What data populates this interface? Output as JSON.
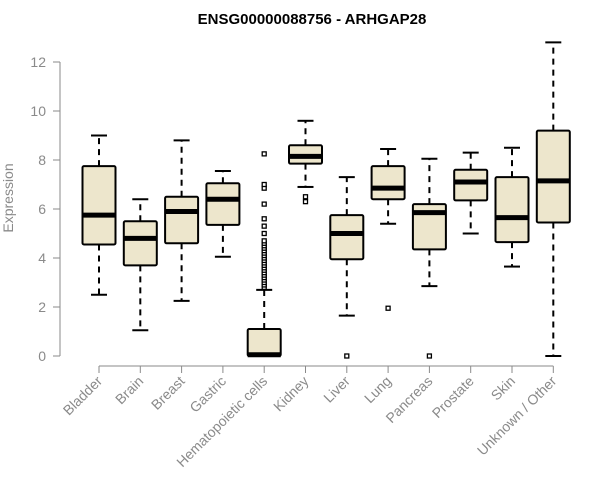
{
  "chart_data": {
    "type": "box",
    "title": "ENSG00000088756 - ARHGAP28",
    "xlabel": "",
    "ylabel": "Expression",
    "ylim": [
      0,
      12.5
    ],
    "yticks": [
      0,
      2,
      4,
      6,
      8,
      10,
      12
    ],
    "categories": [
      "Bladder",
      "Brain",
      "Breast",
      "Gastric",
      "Hematopoietic cells",
      "Kidney",
      "Liver",
      "Lung",
      "Pancreas",
      "Prostate",
      "Skin",
      "Unknown / Other"
    ],
    "boxes": [
      {
        "category": "Bladder",
        "whisker_low": 2.5,
        "q1": 4.55,
        "median": 5.75,
        "q3": 7.75,
        "whisker_high": 9.0,
        "outliers": []
      },
      {
        "category": "Brain",
        "whisker_low": 1.05,
        "q1": 3.7,
        "median": 4.8,
        "q3": 5.5,
        "whisker_high": 6.4,
        "outliers": []
      },
      {
        "category": "Breast",
        "whisker_low": 2.25,
        "q1": 4.6,
        "median": 5.9,
        "q3": 6.5,
        "whisker_high": 8.8,
        "outliers": []
      },
      {
        "category": "Gastric",
        "whisker_low": 4.05,
        "q1": 5.35,
        "median": 6.4,
        "q3": 7.05,
        "whisker_high": 7.55,
        "outliers": []
      },
      {
        "category": "Hematopoietic cells",
        "whisker_low": 0.0,
        "q1": 0.0,
        "median": 0.05,
        "q3": 1.1,
        "whisker_high": 2.7,
        "outliers": [
          2.8,
          2.9,
          3.0,
          3.1,
          3.2,
          3.3,
          3.4,
          3.5,
          3.6,
          3.7,
          3.8,
          3.9,
          4.0,
          4.1,
          4.2,
          4.3,
          4.4,
          4.5,
          4.6,
          4.7,
          5.0,
          5.3,
          5.6,
          6.2,
          6.85,
          7.0,
          8.25
        ]
      },
      {
        "category": "Kidney",
        "whisker_low": 6.9,
        "q1": 7.85,
        "median": 8.15,
        "q3": 8.6,
        "whisker_high": 9.6,
        "outliers": [
          6.3,
          6.5
        ]
      },
      {
        "category": "Liver",
        "whisker_low": 1.65,
        "q1": 3.95,
        "median": 5.0,
        "q3": 5.75,
        "whisker_high": 7.3,
        "outliers": [
          0.0
        ]
      },
      {
        "category": "Lung",
        "whisker_low": 5.4,
        "q1": 6.4,
        "median": 6.85,
        "q3": 7.75,
        "whisker_high": 8.45,
        "outliers": [
          1.95
        ]
      },
      {
        "category": "Pancreas",
        "whisker_low": 2.85,
        "q1": 4.35,
        "median": 5.85,
        "q3": 6.2,
        "whisker_high": 8.05,
        "outliers": [
          0.0
        ]
      },
      {
        "category": "Prostate",
        "whisker_low": 5.0,
        "q1": 6.35,
        "median": 7.1,
        "q3": 7.6,
        "whisker_high": 8.3,
        "outliers": []
      },
      {
        "category": "Skin",
        "whisker_low": 3.65,
        "q1": 4.65,
        "median": 5.65,
        "q3": 7.3,
        "whisker_high": 8.5,
        "outliers": []
      },
      {
        "category": "Unknown / Other",
        "whisker_low": 0.0,
        "q1": 5.45,
        "median": 7.15,
        "q3": 9.2,
        "whisker_high": 12.8,
        "outliers": []
      }
    ],
    "box_fill": "#EDE6CC",
    "box_stroke": "#000000",
    "axis_color": "#8a8a8a",
    "grid": false,
    "legend": "none"
  }
}
